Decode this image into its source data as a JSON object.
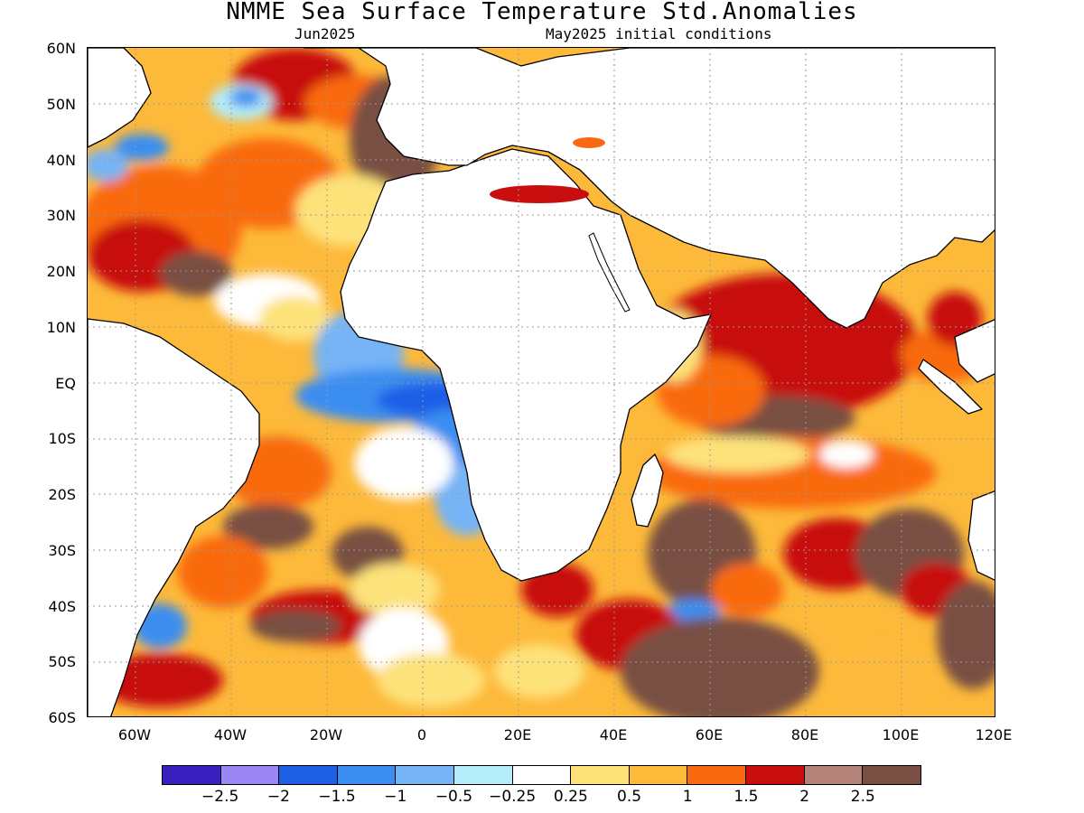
{
  "map": {
    "title": "NMME Sea Surface Temperature Std.Anomalies",
    "subtitle_left": "Jun2025",
    "subtitle_right": "May2025 initial conditions",
    "lat_labels": [
      "60N",
      "50N",
      "40N",
      "30N",
      "20N",
      "10N",
      "EQ",
      "10S",
      "20S",
      "30S",
      "40S",
      "50S",
      "60S"
    ],
    "lon_labels": [
      "60W",
      "40W",
      "20W",
      "0",
      "20E",
      "40E",
      "60E",
      "80E",
      "100E",
      "120E"
    ]
  },
  "colorbar": {
    "colors": [
      "#3a1fbf",
      "#9a86f5",
      "#1f5fe6",
      "#3b8ef0",
      "#76b4f6",
      "#b4ecfa",
      "#ffffff",
      "#fde27a",
      "#fdb93a",
      "#f96a10",
      "#c80e0e",
      "#b38278",
      "#784f42"
    ],
    "labels": [
      "−2.5",
      "−2",
      "−1.5",
      "−1",
      "−0.5",
      "−0.25",
      "0.25",
      "0.5",
      "1",
      "1.5",
      "2",
      "2.5"
    ]
  },
  "colors": {
    "land": "#ffffff",
    "coast": "#000000",
    "grid": "#9a9a9a"
  }
}
